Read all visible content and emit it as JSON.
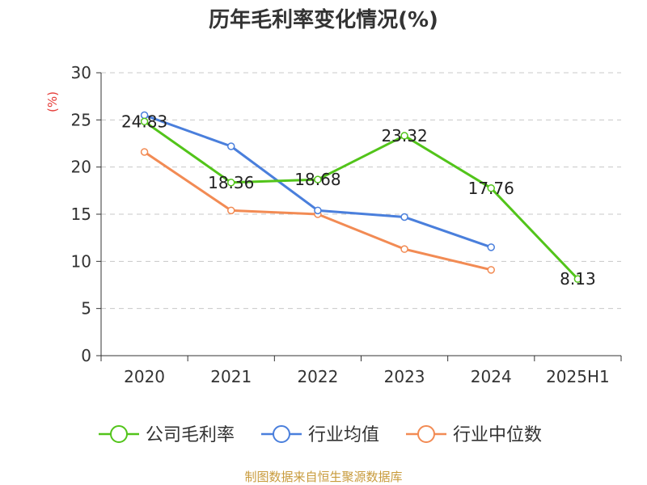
{
  "chart_data": {
    "type": "line",
    "title": "历年毛利率变化情况(%)",
    "unit_label": "(%)",
    "categories": [
      "2020",
      "2021",
      "2022",
      "2023",
      "2024",
      "2025H1"
    ],
    "ylim": [
      0,
      30
    ],
    "yticks": [
      0,
      5,
      10,
      15,
      20,
      25,
      30
    ],
    "grid": true,
    "legend_position": "bottom",
    "series": [
      {
        "name": "公司毛利率",
        "color": "#52c41a",
        "values": [
          24.83,
          18.36,
          18.68,
          23.32,
          17.76,
          8.13
        ],
        "labels": [
          "24.83",
          "18.36",
          "18.68",
          "23.32",
          "17.76",
          "8.13"
        ]
      },
      {
        "name": "行业均值",
        "color": "#4a7fdc",
        "values": [
          25.5,
          22.2,
          15.4,
          14.7,
          11.5,
          null
        ]
      },
      {
        "name": "行业中位数",
        "color": "#f28b54",
        "values": [
          21.6,
          15.4,
          15.0,
          11.3,
          9.1,
          null
        ]
      }
    ]
  },
  "source": "制图数据来自恒生聚源数据库"
}
